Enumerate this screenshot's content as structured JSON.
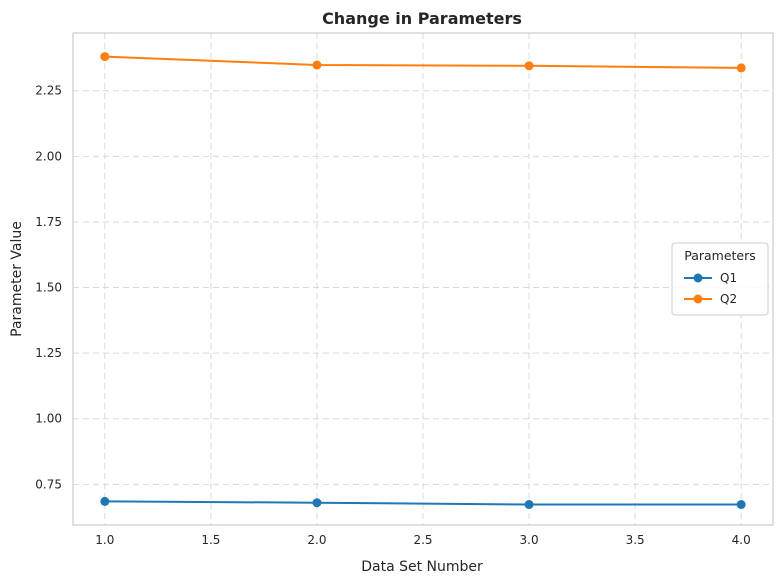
{
  "chart_data": {
    "type": "line",
    "title": "Change in Parameters",
    "xlabel": "Data Set Number",
    "ylabel": "Parameter Value",
    "x": [
      1,
      2,
      3,
      4
    ],
    "xlim": [
      0.85,
      4.15
    ],
    "ylim": [
      0.595,
      2.47
    ],
    "xticks": [
      1.0,
      1.5,
      2.0,
      2.5,
      3.0,
      3.5,
      4.0
    ],
    "xtick_labels": [
      "1.0",
      "1.5",
      "2.0",
      "2.5",
      "3.0",
      "3.5",
      "4.0"
    ],
    "yticks": [
      0.75,
      1.0,
      1.25,
      1.5,
      1.75,
      2.0,
      2.25
    ],
    "ytick_labels": [
      "0.75",
      "1.00",
      "1.25",
      "1.50",
      "1.75",
      "2.00",
      "2.25"
    ],
    "grid": true,
    "legend": {
      "title": "Parameters",
      "placement": "center-right"
    },
    "series": [
      {
        "name": "Q1",
        "color": "#1f77b4",
        "marker": "circle",
        "values": [
          0.685,
          0.68,
          0.673,
          0.673
        ]
      },
      {
        "name": "Q2",
        "color": "#ff7f0e",
        "marker": "circle",
        "values": [
          2.38,
          2.348,
          2.345,
          2.337
        ]
      }
    ]
  }
}
